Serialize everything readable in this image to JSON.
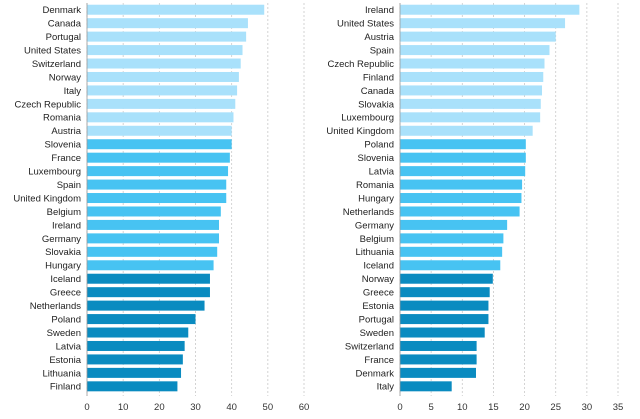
{
  "colors": {
    "light": "#a9e1fb",
    "mid": "#47c3f2",
    "dark": "#0a8bc0",
    "grid": "#c9c9c9",
    "text": "#222222"
  },
  "chart_data": [
    {
      "type": "bar",
      "orientation": "horizontal",
      "grid": true,
      "xlim": [
        0,
        60
      ],
      "xticks": [
        0,
        10,
        20,
        30,
        40,
        50,
        60
      ],
      "categories": [
        "Denmark",
        "Canada",
        "Portugal",
        "United States",
        "Switzerland",
        "Norway",
        "Italy",
        "Czech Republic",
        "Romania",
        "Austria",
        "Slovenia",
        "France",
        "Luxembourg",
        "Spain",
        "United Kingdom",
        "Belgium",
        "Ireland",
        "Germany",
        "Slovakia",
        "Hungary",
        "Iceland",
        "Greece",
        "Netherlands",
        "Poland",
        "Sweden",
        "Latvia",
        "Estonia",
        "Lithuania",
        "Finland"
      ],
      "values": [
        49,
        44.5,
        44,
        43,
        42.5,
        42,
        41.5,
        41,
        40.5,
        40,
        40,
        39.5,
        39,
        38.5,
        38.5,
        37,
        36.5,
        36.5,
        36,
        35,
        34,
        34,
        32.5,
        30,
        28,
        27,
        26.5,
        26,
        25
      ],
      "color_groups": [
        "light",
        "light",
        "light",
        "light",
        "light",
        "light",
        "light",
        "light",
        "light",
        "light",
        "mid",
        "mid",
        "mid",
        "mid",
        "mid",
        "mid",
        "mid",
        "mid",
        "mid",
        "mid",
        "dark",
        "dark",
        "dark",
        "dark",
        "dark",
        "dark",
        "dark",
        "dark",
        "dark"
      ]
    },
    {
      "type": "bar",
      "orientation": "horizontal",
      "grid": true,
      "xlim": [
        0,
        35
      ],
      "xticks": [
        0,
        5,
        10,
        15,
        20,
        25,
        30,
        35
      ],
      "categories": [
        "Ireland",
        "United States",
        "Austria",
        "Spain",
        "Czech Republic",
        "Finland",
        "Canada",
        "Slovakia",
        "Luxembourg",
        "United Kingdom",
        "Poland",
        "Slovenia",
        "Latvia",
        "Romania",
        "Hungary",
        "Netherlands",
        "Germany",
        "Belgium",
        "Lithuania",
        "Iceland",
        "Norway",
        "Greece",
        "Estonia",
        "Portugal",
        "Sweden",
        "Switzerland",
        "France",
        "Denmark",
        "Italy"
      ],
      "values": [
        28.8,
        26.5,
        25,
        24,
        23.2,
        23,
        22.8,
        22.6,
        22.5,
        21.3,
        20.2,
        20.2,
        20.1,
        19.6,
        19.5,
        19.2,
        17.2,
        16.6,
        16.4,
        16.1,
        14.9,
        14.4,
        14.2,
        14.2,
        13.6,
        12.3,
        12.3,
        12.2,
        8.3
      ],
      "color_groups": [
        "light",
        "light",
        "light",
        "light",
        "light",
        "light",
        "light",
        "light",
        "light",
        "light",
        "mid",
        "mid",
        "mid",
        "mid",
        "mid",
        "mid",
        "mid",
        "mid",
        "mid",
        "mid",
        "dark",
        "dark",
        "dark",
        "dark",
        "dark",
        "dark",
        "dark",
        "dark",
        "dark"
      ]
    }
  ]
}
